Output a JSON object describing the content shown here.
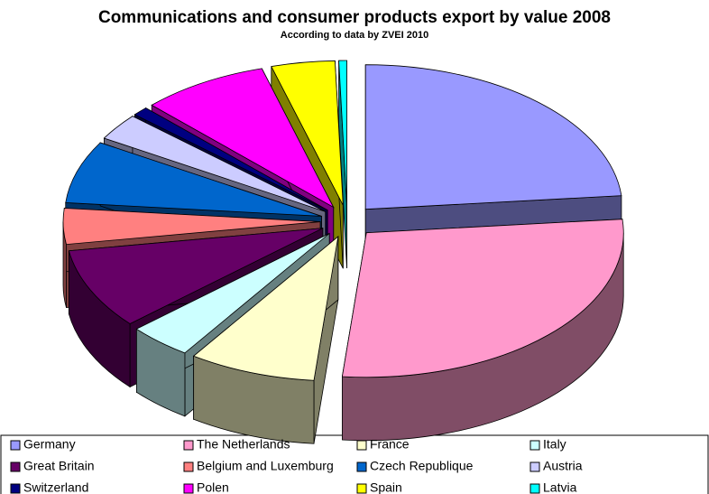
{
  "chart_data": {
    "type": "pie3d",
    "title": "Communications and consumer products export by value 2008",
    "subtitle": "According to data by ZVEI 2010",
    "categories": [
      "Germany",
      "The Netherlands",
      "France",
      "Italy",
      "Great Britain",
      "Belgium and Luxemburg",
      "Czech Republique",
      "Austria",
      "Switzerland",
      "Polen",
      "Spain",
      "Latvia"
    ],
    "values": [
      23.5,
      28,
      8,
      4,
      9,
      4,
      7,
      3,
      1,
      8,
      4,
      0.5
    ],
    "colors": [
      "#9999ff",
      "#ff99cc",
      "#ffffcc",
      "#ccffff",
      "#660066",
      "#ff8080",
      "#0066cc",
      "#ccccff",
      "#000080",
      "#ff00ff",
      "#ffff00",
      "#00ffff"
    ],
    "legend": "bottom"
  }
}
